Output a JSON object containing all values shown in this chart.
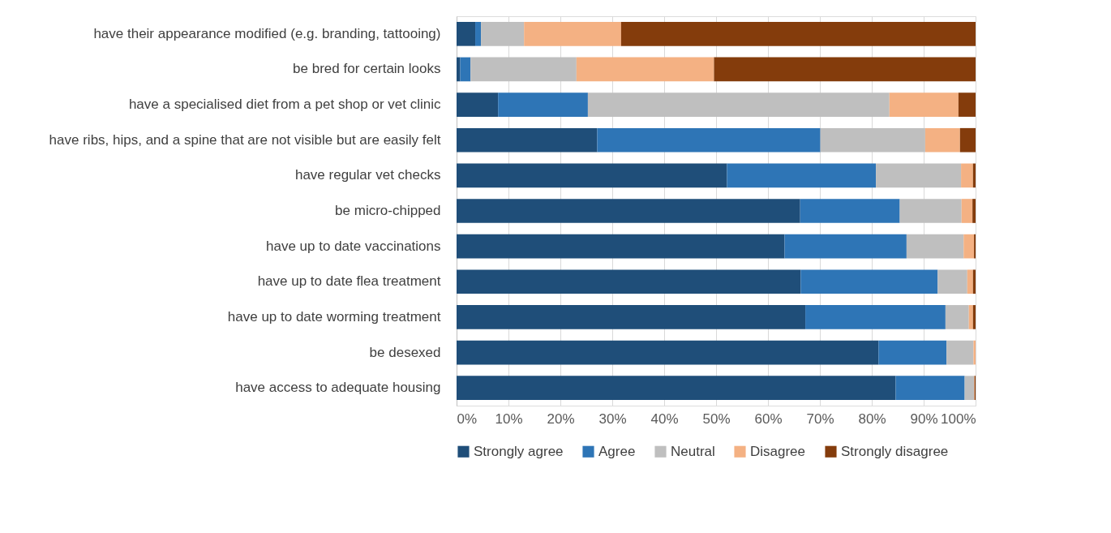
{
  "chart_data": {
    "type": "bar",
    "orientation": "horizontal",
    "stacked": true,
    "categories": [
      "have their appearance modified (e.g. branding, tattooing)",
      "be bred for certain looks",
      "have a specialised diet from a pet shop or vet clinic",
      "have ribs, hips, and a spine that are not visible but are easily felt",
      "have regular vet checks",
      "be micro-chipped",
      "have up to date vaccinations",
      "have up to date flea treatment",
      "have up to date worming treatment",
      "be desexed",
      "have access to adequate housing"
    ],
    "series": [
      {
        "name": "Strongly agree",
        "color": "#1f4e79",
        "values": [
          3.6,
          0.7,
          8.0,
          27.1,
          52.1,
          66.2,
          63.2,
          66.3,
          67.2,
          81.3,
          84.6
        ]
      },
      {
        "name": "Agree",
        "color": "#2e75b6",
        "values": [
          1.1,
          2.0,
          17.3,
          43.0,
          28.7,
          19.2,
          23.5,
          26.4,
          27.0,
          13.1,
          13.3
        ]
      },
      {
        "name": "Neutral",
        "color": "#bfbfbf",
        "values": [
          8.3,
          20.4,
          58.1,
          20.2,
          16.4,
          11.9,
          11.0,
          5.7,
          4.5,
          5.2,
          1.8
        ]
      },
      {
        "name": "Disagree",
        "color": "#f4b183",
        "values": [
          18.7,
          26.5,
          13.3,
          6.7,
          2.3,
          2.1,
          2.0,
          1.1,
          0.8,
          0.4,
          0.1
        ]
      },
      {
        "name": "Strongly disagree",
        "color": "#843c0c",
        "values": [
          68.3,
          50.4,
          3.3,
          3.0,
          0.5,
          0.6,
          0.3,
          0.5,
          0.5,
          null,
          0.2
        ]
      }
    ],
    "xlim": [
      0,
      100
    ],
    "xticks": [
      {
        "value": 0,
        "label": "0%"
      },
      {
        "value": 10,
        "label": "10%"
      },
      {
        "value": 20,
        "label": "20%"
      },
      {
        "value": 30,
        "label": "30%"
      },
      {
        "value": 40,
        "label": "40%"
      },
      {
        "value": 50,
        "label": "50%"
      },
      {
        "value": 60,
        "label": "60%"
      },
      {
        "value": 70,
        "label": "70%"
      },
      {
        "value": 80,
        "label": "80%"
      },
      {
        "value": 90,
        "label": "90%"
      },
      {
        "value": 100,
        "label": "100%"
      }
    ],
    "grid": "x",
    "legend": "bottom"
  }
}
